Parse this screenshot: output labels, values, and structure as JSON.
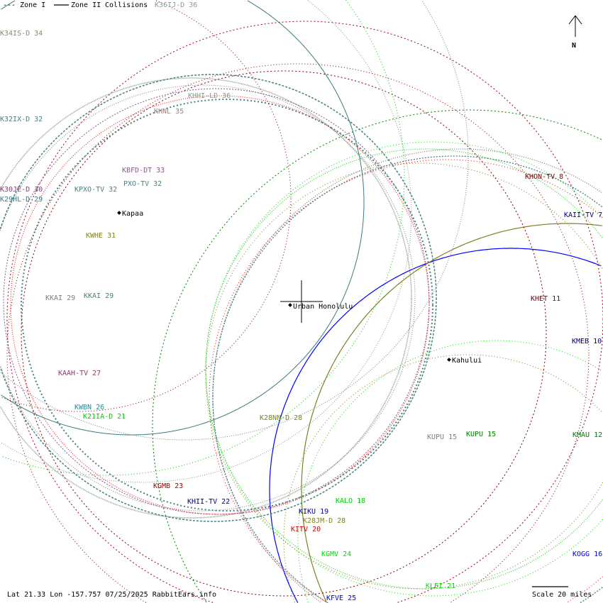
{
  "legend": {
    "zone1": "--- Zone I",
    "zone2": "Zone II",
    "collisions": "Collisions",
    "hidden_station": "K36IJ-D 36"
  },
  "compass": {
    "label": "N"
  },
  "status": {
    "lat_label": "Lat",
    "lat": "21.33",
    "lon_label": "Lon",
    "lon": "-157.757",
    "date": "07/25/2025",
    "site": "RabbitEars.info",
    "line": "Lat 21.33 Lon -157.757 07/25/2025 RabbitEars.info"
  },
  "scale": {
    "label": "Scale 20 miles",
    "distance": 20,
    "unit": "miles"
  },
  "cities": [
    {
      "name": "Kapaa"
    },
    {
      "name": "Urban Honolulu"
    },
    {
      "name": "Kahului"
    }
  ],
  "stations": [
    {
      "label": "K34IS-D 34",
      "color": "#8a8a6a"
    },
    {
      "label": "K32IX-D 32",
      "color": "#4a8080"
    },
    {
      "label": "KHHI-LD 36",
      "color": "#8a9a8a"
    },
    {
      "label": "KHNL 35",
      "color": "#a08080"
    },
    {
      "label": "KBFD-DT 33",
      "color": "#8a5a8a"
    },
    {
      "label": "KPXO-TV 32",
      "color": "#4a8080"
    },
    {
      "label": "PXO-TV 32",
      "color": "#4a8080"
    },
    {
      "label": "K30JE-D 30",
      "color": "#8a3a8a"
    },
    {
      "label": "K29HL-D 29",
      "color": "#2a8080"
    },
    {
      "label": "KWHE 31",
      "color": "#808020"
    },
    {
      "label": "KKAI 29",
      "color": "#808080"
    },
    {
      "label": "KKAI 29",
      "color": "#4a8080"
    },
    {
      "label": "KAAH-TV 27",
      "color": "#8a3a6a"
    },
    {
      "label": "KWBN 26",
      "color": "#2a8a9a"
    },
    {
      "label": "K21IA-D 21",
      "color": "#00cc00"
    },
    {
      "label": "KGMB 23",
      "color": "#a00000"
    },
    {
      "label": "KHII-TV 22",
      "color": "#000080"
    },
    {
      "label": "K28NN-D 28",
      "color": "#808020"
    },
    {
      "label": "KIKU 19",
      "color": "#0000a0"
    },
    {
      "label": "K28JM-D 28",
      "color": "#808020"
    },
    {
      "label": "KALO 18",
      "color": "#00cc00"
    },
    {
      "label": "KITV 20",
      "color": "#dd0000"
    },
    {
      "label": "KGMV 24",
      "color": "#00dd00"
    },
    {
      "label": "KFVE 25",
      "color": "#0000dd"
    },
    {
      "label": "KLEI 21",
      "color": "#00dd00"
    },
    {
      "label": "KUPU 15",
      "color": "#808080"
    },
    {
      "label": "KUPU 15",
      "color": "#008000"
    },
    {
      "label": "KHON-TV 8",
      "color": "#800000"
    },
    {
      "label": "KAII-TV 7",
      "color": "#000080"
    },
    {
      "label": "KHET 11",
      "color": "#800000"
    },
    {
      "label": "KMEB 10",
      "color": "#000080"
    },
    {
      "label": "KMAU 12",
      "color": "#008000"
    },
    {
      "label": "KOGG 16",
      "color": "#0000dd"
    }
  ]
}
